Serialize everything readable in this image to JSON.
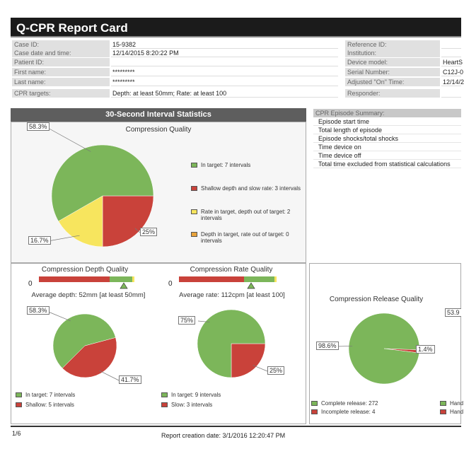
{
  "title": "Q-CPR Report Card",
  "info_left": [
    {
      "label": "Case ID:",
      "value": "15-9382"
    },
    {
      "label": "Case date and time:",
      "value": "12/14/2015 8:20:22 PM"
    },
    {
      "label": "Patient ID:",
      "value": ""
    },
    {
      "label": "First name:",
      "value": "*********"
    },
    {
      "label": "Last name:",
      "value": "*********"
    },
    {
      "label": "CPR targets:",
      "value": "Depth: at least 50mm; Rate: at least 100"
    }
  ],
  "info_right": [
    {
      "label": "Reference ID:",
      "value": ""
    },
    {
      "label": "Institution:",
      "value": ""
    },
    {
      "label": "Device model:",
      "value": "HeartS"
    },
    {
      "label": "Serial Number:",
      "value": "C12J-0"
    },
    {
      "label": "Adjusted \"On\" Time:",
      "value": "12/14/2"
    },
    {
      "label": "Responder:",
      "value": ""
    }
  ],
  "section_title": "30-Second Interval Statistics",
  "summary": {
    "header": "CPR Episode Summary:",
    "rows": [
      "Episode start time",
      "Total length of episode",
      "Episode shocks/total shocks",
      "Time device on",
      "Time device off",
      "Total time excluded from statistical calculations"
    ]
  },
  "colors": {
    "green": "#7cb65a",
    "red": "#c9423a",
    "yellow": "#f7e55e",
    "orange": "#e8a23a"
  },
  "chart_data": [
    {
      "type": "pie",
      "title": "Compression Quality",
      "slices": [
        {
          "name": "Shallow depth and slow rate: 3 intervals",
          "value": 25,
          "label": "25%",
          "color": "#c9423a"
        },
        {
          "name": "Rate in target, depth out of target: 2 intervals",
          "value": 16.7,
          "label": "16.7%",
          "color": "#f7e55e"
        },
        {
          "name": "In target: 7 intervals",
          "value": 58.3,
          "label": "58.3%",
          "color": "#7cb65a"
        },
        {
          "name": "Depth in target, rate out of target: 0 intervals",
          "value": 0,
          "label": "",
          "color": "#e8a23a"
        }
      ]
    },
    {
      "type": "pie",
      "title": "Compression Depth Quality",
      "bar_zero": "0",
      "average": "Average depth: 52mm  [at least 50mm]",
      "slices": [
        {
          "name": "Shallow: 5 intervals",
          "value": 41.7,
          "label": "41.7%",
          "color": "#c9423a"
        },
        {
          "name": "In target: 7 intervals",
          "value": 58.3,
          "label": "58.3%",
          "color": "#7cb65a"
        }
      ]
    },
    {
      "type": "pie",
      "title": "Compression Rate Quality",
      "bar_zero": "0",
      "average": "Average rate: 112cpm [at least 100]",
      "slices": [
        {
          "name": "Slow: 3 intervals",
          "value": 25,
          "label": "25%",
          "color": "#c9423a"
        },
        {
          "name": "In target: 9 intervals",
          "value": 75,
          "label": "75%",
          "color": "#7cb65a"
        }
      ]
    },
    {
      "type": "pie",
      "title": "Compression Release Quality",
      "slices": [
        {
          "name": "Incomplete release: 4",
          "value": 1.4,
          "label": "1.4%",
          "color": "#c9423a"
        },
        {
          "name": "Complete release: 272",
          "value": 98.6,
          "label": "98.6%",
          "color": "#7cb65a"
        }
      ]
    }
  ],
  "partial": {
    "label": "53.9",
    "legend": [
      "Hand",
      "Hand"
    ]
  },
  "footer": {
    "page": "1/6",
    "created": "Report creation date: 3/1/2016 12:20:47 PM"
  }
}
